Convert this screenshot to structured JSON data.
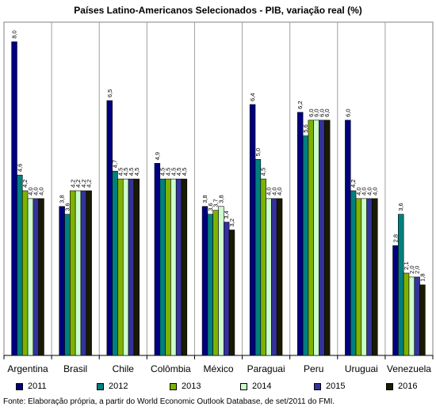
{
  "chart_data": {
    "type": "bar",
    "title": "Países Latino-Americanos Selecionados - PIB, variação real (%)",
    "categories": [
      "Argentina",
      "Brasil",
      "Chile",
      "Colômbia",
      "México",
      "Paraguai",
      "Peru",
      "Uruguai",
      "Venezuela"
    ],
    "series": [
      {
        "name": "2011",
        "color": "#00007f",
        "values": [
          8.0,
          3.8,
          6.5,
          4.9,
          3.8,
          6.4,
          6.2,
          6.0,
          2.8
        ]
      },
      {
        "name": "2012",
        "color": "#007f7f",
        "values": [
          4.6,
          3.6,
          4.7,
          4.5,
          3.6,
          5.0,
          5.6,
          4.2,
          3.6
        ]
      },
      {
        "name": "2013",
        "color": "#7fb200",
        "values": [
          4.2,
          4.2,
          4.5,
          4.5,
          3.7,
          4.5,
          6.0,
          4.0,
          2.1
        ]
      },
      {
        "name": "2014",
        "color": "#ccffcc",
        "values": [
          4.0,
          4.2,
          4.5,
          4.5,
          3.8,
          4.0,
          6.0,
          4.0,
          2.0
        ]
      },
      {
        "name": "2015",
        "color": "#33339a",
        "values": [
          4.0,
          4.2,
          4.5,
          4.5,
          3.4,
          4.0,
          6.0,
          4.0,
          2.0
        ]
      },
      {
        "name": "2016",
        "color": "#1a1a00",
        "values": [
          4.0,
          4.2,
          4.5,
          4.5,
          3.2,
          4.0,
          6.0,
          4.0,
          1.8
        ]
      }
    ],
    "value_labels": [
      [
        "8,0",
        "3,8",
        "6,5",
        "4,9",
        "3,8",
        "6,4",
        "6,2",
        "6,0",
        "2,8"
      ],
      [
        "4,6",
        "3,6",
        "4,7",
        "4,5",
        "3,6",
        "5,0",
        "5,6",
        "4,2",
        "3,6"
      ],
      [
        "4,2",
        "4,2",
        "4,5",
        "4,5",
        "3,7",
        "4,5",
        "6,0",
        "4,0",
        "2,1"
      ],
      [
        "4,0",
        "4,2",
        "4,5",
        "4,5",
        "3,8",
        "4,0",
        "6,0",
        "4,0",
        "2,0"
      ],
      [
        "4,0",
        "4,2",
        "4,5",
        "4,5",
        "3,4",
        "4,0",
        "6,0",
        "4,0",
        "2,0"
      ],
      [
        "4,0",
        "4,2",
        "4,5",
        "4,5",
        "3,2",
        "4,0",
        "6,0",
        "4,0",
        "1,8"
      ]
    ],
    "ylim": [
      0,
      8.5
    ],
    "grid": false,
    "legend": "bottom"
  },
  "source_note": "Fonte: Elaboração própria, a partir do World Economic Outlook Database, de set/2011 do FMI."
}
